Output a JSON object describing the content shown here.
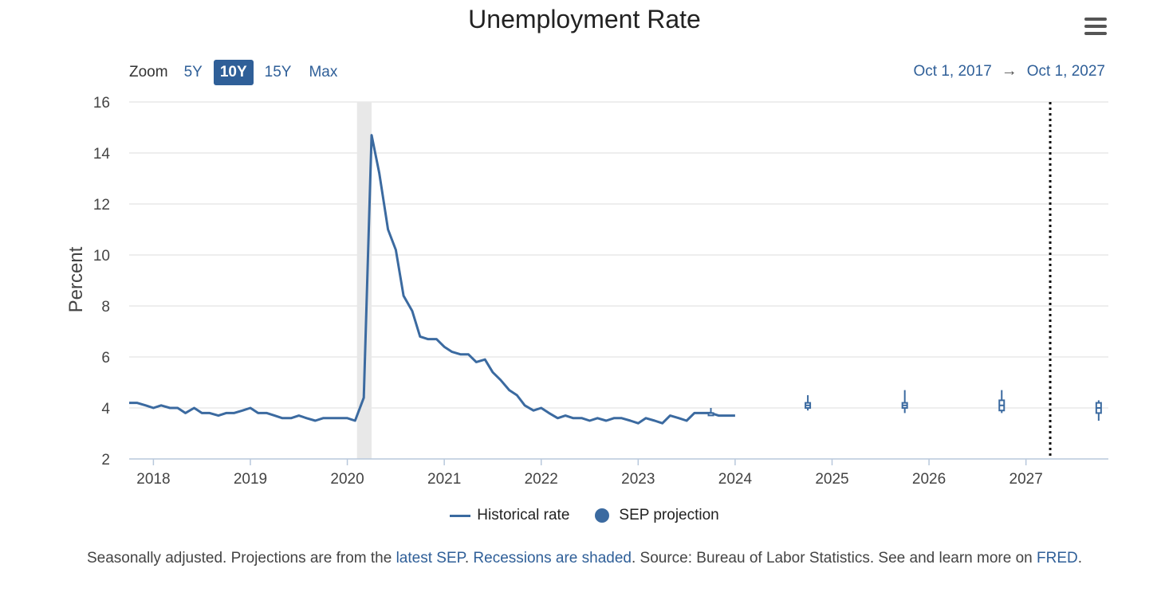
{
  "chart_data": {
    "type": "line",
    "title": "Unemployment Rate",
    "ylabel": "Percent",
    "xlabel": "",
    "ylim": [
      2,
      16
    ],
    "xlim": [
      2017.75,
      2027.85
    ],
    "yticks": [
      "2",
      "4",
      "6",
      "8",
      "10",
      "12",
      "14",
      "16"
    ],
    "xticks": [
      "2018",
      "2019",
      "2020",
      "2021",
      "2022",
      "2023",
      "2024",
      "2025",
      "2026",
      "2027"
    ],
    "grid": true,
    "recession": {
      "start": 2020.1,
      "end": 2020.25
    },
    "today_marker": 2027.25,
    "series": [
      {
        "name": "Historical rate",
        "x": [
          2017.75,
          2017.83,
          2017.92,
          2018.0,
          2018.08,
          2018.17,
          2018.25,
          2018.33,
          2018.42,
          2018.5,
          2018.58,
          2018.67,
          2018.75,
          2018.83,
          2018.92,
          2019.0,
          2019.08,
          2019.17,
          2019.25,
          2019.33,
          2019.42,
          2019.5,
          2019.58,
          2019.67,
          2019.75,
          2019.83,
          2019.92,
          2020.0,
          2020.08,
          2020.17,
          2020.25,
          2020.33,
          2020.42,
          2020.5,
          2020.58,
          2020.67,
          2020.75,
          2020.83,
          2020.92,
          2021.0,
          2021.08,
          2021.17,
          2021.25,
          2021.33,
          2021.42,
          2021.5,
          2021.58,
          2021.67,
          2021.75,
          2021.83,
          2021.92,
          2022.0,
          2022.08,
          2022.17,
          2022.25,
          2022.33,
          2022.42,
          2022.5,
          2022.58,
          2022.67,
          2022.75,
          2022.83,
          2022.92,
          2023.0,
          2023.08,
          2023.17,
          2023.25,
          2023.33,
          2023.42,
          2023.5,
          2023.58,
          2023.67,
          2023.75,
          2023.83,
          2023.92,
          2024.0
        ],
        "values": [
          4.2,
          4.2,
          4.1,
          4.0,
          4.1,
          4.0,
          4.0,
          3.8,
          4.0,
          3.8,
          3.8,
          3.7,
          3.8,
          3.8,
          3.9,
          4.0,
          3.8,
          3.8,
          3.7,
          3.6,
          3.6,
          3.7,
          3.6,
          3.5,
          3.6,
          3.6,
          3.6,
          3.6,
          3.5,
          4.4,
          14.7,
          13.2,
          11.0,
          10.2,
          8.4,
          7.8,
          6.8,
          6.7,
          6.7,
          6.4,
          6.2,
          6.1,
          6.1,
          5.8,
          5.9,
          5.4,
          5.1,
          4.7,
          4.5,
          4.1,
          3.9,
          4.0,
          3.8,
          3.6,
          3.7,
          3.6,
          3.6,
          3.5,
          3.6,
          3.5,
          3.6,
          3.6,
          3.5,
          3.4,
          3.6,
          3.5,
          3.4,
          3.7,
          3.6,
          3.5,
          3.8,
          3.8,
          3.8,
          3.7,
          3.7,
          3.7
        ]
      },
      {
        "name": "SEP projection",
        "type": "boxplot",
        "points": [
          {
            "x": 2023.75,
            "low": 3.7,
            "q1": 3.8,
            "median": 3.8,
            "q3": 3.8,
            "high": 4.0
          },
          {
            "x": 2024.75,
            "low": 3.9,
            "q1": 4.0,
            "median": 4.1,
            "q3": 4.2,
            "high": 4.5
          },
          {
            "x": 2025.75,
            "low": 3.8,
            "q1": 4.0,
            "median": 4.1,
            "q3": 4.2,
            "high": 4.7
          },
          {
            "x": 2026.75,
            "low": 3.8,
            "q1": 3.9,
            "median": 4.1,
            "q3": 4.3,
            "high": 4.7
          },
          {
            "x": 2027.75,
            "low": 3.5,
            "q1": 3.8,
            "median": 4.0,
            "q3": 4.2,
            "high": 4.3
          }
        ]
      }
    ]
  },
  "controls": {
    "zoom_label": "Zoom",
    "zoom_options": [
      "5Y",
      "10Y",
      "15Y",
      "Max"
    ],
    "zoom_selected": "10Y",
    "range_from": "Oct 1, 2017",
    "range_arrow": "→",
    "range_to": "Oct 1, 2027",
    "menu_icon": "hamburger-menu-icon"
  },
  "legend": {
    "historical": "Historical rate",
    "projection": "SEP projection"
  },
  "footer": {
    "t1": "Seasonally adjusted. Projections are from the ",
    "l1": "latest SEP",
    "t2": ". ",
    "l2": "Recessions are shaded",
    "t3": ". Source: Bureau of Labor Statistics. See and learn more on ",
    "l3": "FRED",
    "t4": "."
  },
  "colors": {
    "series": "#3b6aa0",
    "accent": "#2f5f98",
    "grid": "#dddddd",
    "recession": "#e8e8e8"
  }
}
